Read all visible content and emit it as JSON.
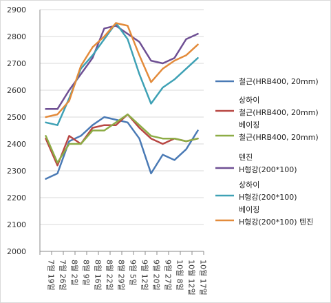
{
  "chart_data": {
    "type": "line",
    "title": "",
    "xlabel": "",
    "ylabel": "",
    "ylim": [
      2000,
      2900
    ],
    "ytick_step": 100,
    "yticks": [
      "2000",
      "2100",
      "2200",
      "2300",
      "2400",
      "2500",
      "2600",
      "2700",
      "2800",
      "2900"
    ],
    "grid": "horizontal",
    "legend_placement": "right",
    "categories": [
      "7월 19일",
      "7월 26일",
      "8월 2일",
      "8월 9일",
      "8월 16일",
      "8월 22일",
      "8월 29일",
      "9월 5일",
      "9월 12일",
      "9월 20일",
      "9월 27일",
      "10월 8일",
      "10월 12일",
      "10월 17일"
    ],
    "series": [
      {
        "name": "철근(HRB400, 20mm)",
        "legend_lines": [
          "철근(HRB400, 20mm)"
        ],
        "color": "#4a7ab5",
        "values": [
          2270,
          2290,
          2410,
          2430,
          2470,
          2500,
          2490,
          2480,
          2420,
          2290,
          2360,
          2340,
          2380,
          2450
        ]
      },
      {
        "name": "상하이 철근(HRB400, 20mm)",
        "legend_lines": [
          "상하이",
          "철근(HRB400, 20mm)"
        ],
        "color": "#b84743",
        "values": [
          2420,
          2320,
          2430,
          2400,
          2460,
          2470,
          2470,
          2510,
          2460,
          2420,
          2400,
          2420,
          2410,
          2420
        ]
      },
      {
        "name": "베이징 철근(HRB400, 20mm)",
        "legend_lines": [
          "베이징",
          "철근(HRB400, 20mm)"
        ],
        "color": "#8dac46",
        "values": [
          2430,
          2330,
          2400,
          2400,
          2450,
          2450,
          2480,
          2510,
          2470,
          2430,
          2420,
          2420,
          2410,
          2420
        ]
      },
      {
        "name": "텐진 H형강(200*100)",
        "legend_lines": [
          "텐진",
          "H형강(200*100)"
        ],
        "color": "#6e4f93",
        "values": [
          2530,
          2530,
          2600,
          2660,
          2720,
          2830,
          2840,
          2810,
          2780,
          2710,
          2700,
          2720,
          2790,
          2810
        ]
      },
      {
        "name": "상하이 H형강(200*100)",
        "legend_lines": [
          "상하이",
          "H형강(200*100)"
        ],
        "color": "#3ea1b5",
        "values": [
          2480,
          2470,
          2570,
          2680,
          2730,
          2790,
          2850,
          2790,
          2660,
          2550,
          2610,
          2640,
          2680,
          2720
        ]
      },
      {
        "name": "베이징 H형강(200*100) 텐진",
        "legend_lines": [
          "베이징",
          "H형강(200*100) 텐진"
        ],
        "color": "#e38b3b",
        "values": [
          2500,
          2510,
          2560,
          2690,
          2760,
          2800,
          2850,
          2840,
          2730,
          2630,
          2680,
          2710,
          2730,
          2770
        ]
      }
    ]
  }
}
